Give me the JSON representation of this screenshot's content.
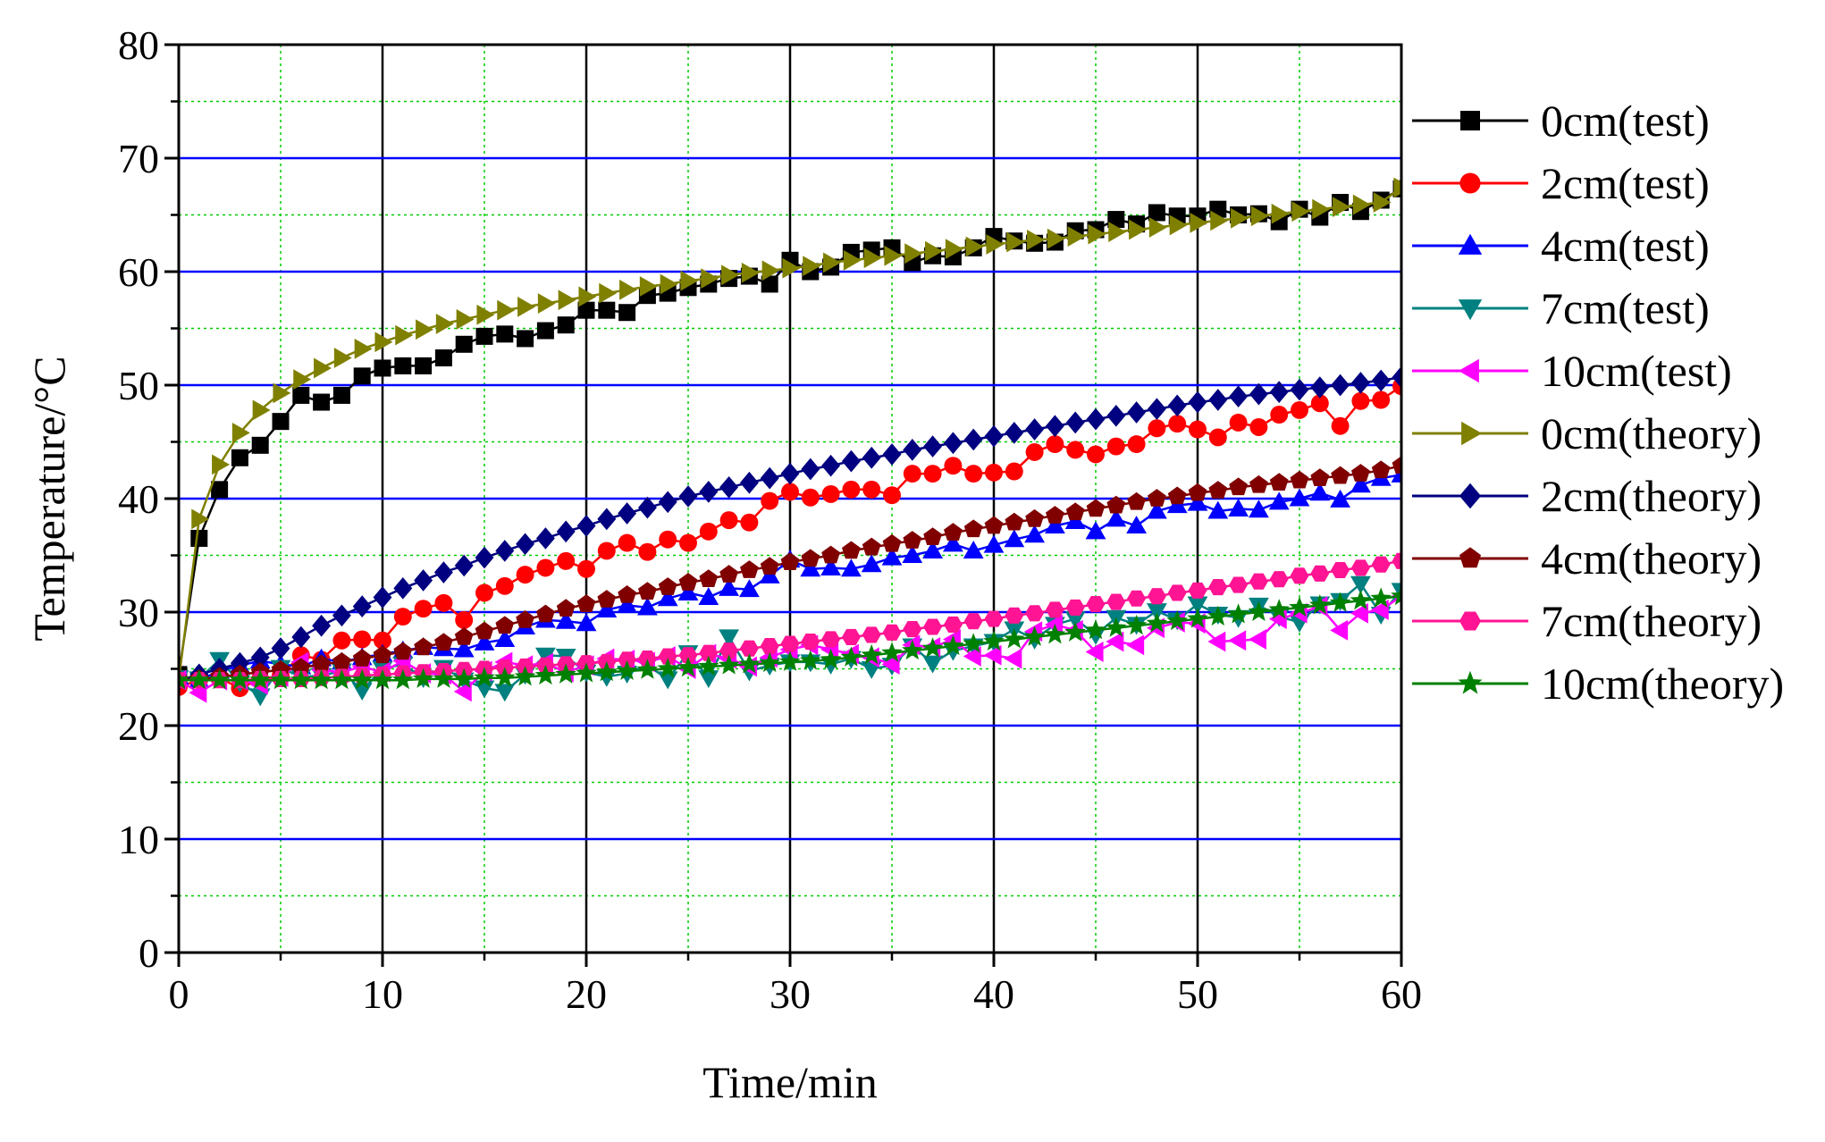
{
  "chart_data": {
    "type": "line",
    "title": "",
    "xlabel": "Time/min",
    "ylabel": "Temperature/°C",
    "xlim": [
      0,
      60
    ],
    "ylim": [
      0,
      80
    ],
    "xticks": [
      0,
      10,
      20,
      30,
      40,
      50,
      60
    ],
    "yticks": [
      0,
      10,
      20,
      30,
      40,
      50,
      60,
      70,
      80
    ],
    "x_tick_labels": [
      "0",
      "10",
      "20",
      "30",
      "40",
      "50",
      "60"
    ],
    "y_tick_labels": [
      "0",
      "10",
      "20",
      "30",
      "40",
      "50",
      "60",
      "70",
      "80"
    ],
    "grid": true,
    "legend_position": "right",
    "x": [
      0,
      1,
      2,
      3,
      4,
      5,
      6,
      7,
      8,
      9,
      10,
      11,
      12,
      13,
      14,
      15,
      16,
      17,
      18,
      19,
      20,
      21,
      22,
      23,
      24,
      25,
      26,
      27,
      28,
      29,
      30,
      31,
      32,
      33,
      34,
      35,
      36,
      37,
      38,
      39,
      40,
      41,
      42,
      43,
      44,
      45,
      46,
      47,
      48,
      49,
      50,
      51,
      52,
      53,
      54,
      55,
      56,
      57,
      58,
      59,
      60
    ],
    "series": [
      {
        "name": "0cm(test)",
        "color": "#000000",
        "marker": "square",
        "values": [
          24.5,
          36.5,
          40.8,
          43.6,
          44.7,
          46.8,
          49.1,
          48.5,
          49.1,
          50.8,
          51.5,
          51.7,
          51.7,
          52.4,
          53.6,
          54.3,
          54.5,
          54.1,
          54.8,
          55.3,
          56.6,
          56.6,
          56.4,
          57.9,
          58.1,
          58.6,
          58.9,
          59.4,
          59.6,
          58.9,
          61.0,
          60.0,
          60.4,
          61.7,
          61.9,
          62.1,
          60.8,
          61.4,
          61.3,
          62.1,
          63.1,
          62.7,
          62.5,
          62.6,
          63.6,
          63.7,
          64.6,
          64.2,
          65.2,
          64.9,
          64.9,
          65.5,
          65.0,
          65.1,
          64.4,
          65.5,
          64.8,
          66.1,
          65.3,
          66.3,
          67.3
        ]
      },
      {
        "name": "2cm(test)",
        "color": "#ff0000",
        "marker": "circle",
        "values": [
          23.4,
          24.0,
          24.2,
          23.3,
          24.1,
          24.4,
          26.2,
          25.8,
          27.5,
          27.6,
          27.5,
          29.6,
          30.3,
          30.8,
          29.3,
          31.7,
          32.3,
          33.3,
          33.9,
          34.5,
          33.8,
          35.4,
          36.1,
          35.3,
          36.4,
          36.1,
          37.1,
          38.1,
          37.9,
          39.8,
          40.6,
          40.1,
          40.4,
          40.8,
          40.8,
          40.3,
          42.2,
          42.2,
          42.9,
          42.2,
          42.3,
          42.4,
          44.1,
          44.8,
          44.3,
          43.9,
          44.6,
          44.8,
          46.2,
          46.6,
          46.1,
          45.4,
          46.7,
          46.3,
          47.4,
          47.8,
          48.4,
          46.4,
          48.6,
          48.7,
          49.9
        ]
      },
      {
        "name": "4cm(test)",
        "color": "#0000ff",
        "marker": "triangle-up",
        "values": [
          24.3,
          24.0,
          24.8,
          25.3,
          25.7,
          25.4,
          25.2,
          25.9,
          25.6,
          26.0,
          26.3,
          26.6,
          26.9,
          26.8,
          26.7,
          27.3,
          27.6,
          28.7,
          29.3,
          29.2,
          29.0,
          30.2,
          30.6,
          30.4,
          31.2,
          31.7,
          31.3,
          32.1,
          32.0,
          33.2,
          34.6,
          33.8,
          33.9,
          33.8,
          34.2,
          34.8,
          35.0,
          35.4,
          36.0,
          35.4,
          35.9,
          36.4,
          36.8,
          37.6,
          38.0,
          37.1,
          38.2,
          37.6,
          38.9,
          39.4,
          39.6,
          38.9,
          39.1,
          39.0,
          39.7,
          40.0,
          40.5,
          39.9,
          41.2,
          41.8,
          42.1
        ]
      },
      {
        "name": "7cm(test)",
        "color": "#008080",
        "marker": "triangle-down",
        "values": [
          24.2,
          24.1,
          25.8,
          23.8,
          22.6,
          25.1,
          24.3,
          24.4,
          24.8,
          23.1,
          25.0,
          25.4,
          24.2,
          25.1,
          24.0,
          23.3,
          23.0,
          24.5,
          26.2,
          26.1,
          24.7,
          24.3,
          24.6,
          25.3,
          24.1,
          26.4,
          24.2,
          27.8,
          24.8,
          25.3,
          25.6,
          25.6,
          25.4,
          25.9,
          25.0,
          25.3,
          27.0,
          25.5,
          26.6,
          27.0,
          27.4,
          28.5,
          27.6,
          28.9,
          29.4,
          28.0,
          29.5,
          28.9,
          30.1,
          29.3,
          30.7,
          29.8,
          29.5,
          30.6,
          29.6,
          29.1,
          30.7,
          31.0,
          32.5,
          29.8,
          31.9
        ]
      },
      {
        "name": "10cm(test)",
        "color": "#ff00ff",
        "marker": "triangle-left",
        "values": [
          24.0,
          22.9,
          24.0,
          24.0,
          23.6,
          24.3,
          25.6,
          24.9,
          24.7,
          25.2,
          24.7,
          25.7,
          24.6,
          24.5,
          23.0,
          24.8,
          25.6,
          25.3,
          25.5,
          24.7,
          25.3,
          25.9,
          25.8,
          25.6,
          26.1,
          25.0,
          26.3,
          25.9,
          25.2,
          26.0,
          26.7,
          27.1,
          26.7,
          26.3,
          26.0,
          25.4,
          27.1,
          26.9,
          27.6,
          26.1,
          26.2,
          25.9,
          28.3,
          28.9,
          28.4,
          26.5,
          27.4,
          27.1,
          28.6,
          29.1,
          29.0,
          27.4,
          27.5,
          27.6,
          29.4,
          29.9,
          30.5,
          28.4,
          29.9,
          30.2,
          31.4
        ]
      },
      {
        "name": "0cm(theory)",
        "color": "#808000",
        "marker": "triangle-right",
        "values": [
          24.0,
          38.2,
          43.0,
          45.8,
          47.8,
          49.3,
          50.5,
          51.5,
          52.4,
          53.2,
          53.8,
          54.4,
          54.9,
          55.4,
          55.8,
          56.2,
          56.6,
          56.9,
          57.2,
          57.5,
          57.8,
          58.1,
          58.4,
          58.7,
          58.9,
          59.2,
          59.4,
          59.7,
          59.9,
          60.1,
          60.3,
          60.5,
          60.8,
          61.0,
          61.2,
          61.4,
          61.6,
          61.8,
          62.0,
          62.2,
          62.4,
          62.6,
          62.8,
          62.9,
          63.1,
          63.3,
          63.5,
          63.7,
          63.9,
          64.1,
          64.3,
          64.5,
          64.7,
          64.9,
          65.1,
          65.3,
          65.5,
          65.7,
          65.9,
          66.1,
          67.4
        ]
      },
      {
        "name": "2cm(theory)",
        "color": "#000080",
        "marker": "diamond",
        "values": [
          24.0,
          24.5,
          25.0,
          25.5,
          26.0,
          26.8,
          27.8,
          28.8,
          29.7,
          30.5,
          31.3,
          32.1,
          32.8,
          33.5,
          34.1,
          34.8,
          35.4,
          36.0,
          36.5,
          37.1,
          37.6,
          38.2,
          38.7,
          39.2,
          39.7,
          40.2,
          40.6,
          41.0,
          41.4,
          41.8,
          42.2,
          42.6,
          42.9,
          43.3,
          43.6,
          43.9,
          44.3,
          44.6,
          44.9,
          45.2,
          45.5,
          45.8,
          46.1,
          46.4,
          46.7,
          47.0,
          47.3,
          47.6,
          47.9,
          48.2,
          48.5,
          48.7,
          49.0,
          49.2,
          49.4,
          49.6,
          49.8,
          50.0,
          50.2,
          50.4,
          50.7
        ]
      },
      {
        "name": "4cm(theory)",
        "color": "#800000",
        "marker": "pentagon",
        "values": [
          24.0,
          24.1,
          24.3,
          24.5,
          24.7,
          24.9,
          25.1,
          25.4,
          25.6,
          25.9,
          26.2,
          26.5,
          26.9,
          27.3,
          27.8,
          28.3,
          28.8,
          29.3,
          29.8,
          30.3,
          30.7,
          31.1,
          31.5,
          31.8,
          32.2,
          32.6,
          32.9,
          33.3,
          33.7,
          34.0,
          34.4,
          34.7,
          35.0,
          35.4,
          35.7,
          36.0,
          36.3,
          36.6,
          37.0,
          37.3,
          37.6,
          37.9,
          38.2,
          38.5,
          38.8,
          39.1,
          39.4,
          39.7,
          40.0,
          40.2,
          40.5,
          40.7,
          41.0,
          41.2,
          41.4,
          41.6,
          41.8,
          42.0,
          42.2,
          42.5,
          42.9
        ]
      },
      {
        "name": "7cm(theory)",
        "color": "#ff1493",
        "marker": "hexagon",
        "values": [
          24.0,
          24.0,
          24.0,
          24.0,
          24.1,
          24.1,
          24.1,
          24.2,
          24.3,
          24.4,
          24.5,
          24.6,
          24.7,
          24.8,
          24.9,
          25.0,
          25.1,
          25.2,
          25.3,
          25.4,
          25.5,
          25.6,
          25.8,
          25.9,
          26.1,
          26.2,
          26.4,
          26.6,
          26.8,
          27.0,
          27.2,
          27.4,
          27.6,
          27.8,
          28.0,
          28.2,
          28.5,
          28.7,
          28.9,
          29.2,
          29.4,
          29.7,
          29.9,
          30.2,
          30.4,
          30.7,
          30.9,
          31.2,
          31.4,
          31.7,
          31.9,
          32.2,
          32.4,
          32.7,
          32.9,
          33.2,
          33.4,
          33.7,
          33.9,
          34.2,
          34.5
        ]
      },
      {
        "name": "10cm(theory)",
        "color": "#008000",
        "marker": "star",
        "values": [
          24.0,
          24.0,
          24.0,
          24.0,
          24.0,
          24.0,
          24.0,
          24.0,
          24.0,
          24.0,
          24.0,
          24.0,
          24.1,
          24.1,
          24.1,
          24.2,
          24.2,
          24.3,
          24.4,
          24.5,
          24.6,
          24.7,
          24.8,
          24.9,
          25.0,
          25.1,
          25.2,
          25.3,
          25.4,
          25.5,
          25.6,
          25.7,
          25.8,
          26.0,
          26.2,
          26.4,
          26.6,
          26.8,
          27.0,
          27.2,
          27.4,
          27.6,
          27.8,
          28.0,
          28.2,
          28.4,
          28.6,
          28.8,
          29.0,
          29.2,
          29.4,
          29.6,
          29.8,
          30.0,
          30.2,
          30.4,
          30.6,
          30.8,
          31.0,
          31.2,
          31.4
        ]
      }
    ]
  }
}
